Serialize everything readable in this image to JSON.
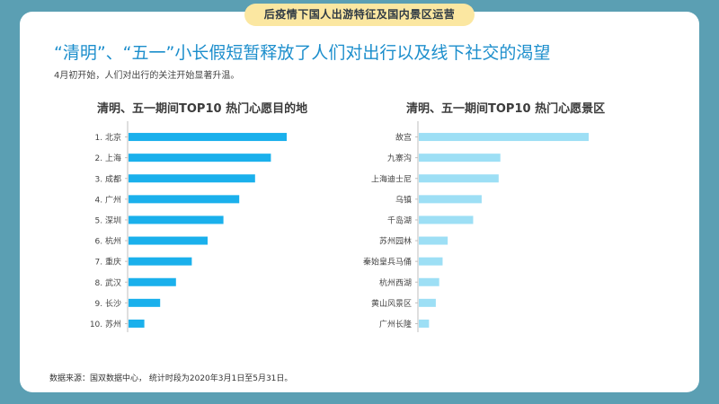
{
  "banner": "后疫情下国人出游特征及国内景区运营",
  "headline": "“清明”、“五一”小长假短暂释放了人们对出行以及线下社交的渴望",
  "subline": "4月初开始，人们对出行的关注开始显著升温。",
  "footer": "数据来源：国双数据中心， 统计时段为2020年3月1日至5月31日。",
  "colors": {
    "left_bar": "#1ab0ec",
    "right_bar": "#9ddff5",
    "background": "#5b9fb3"
  },
  "chart_data": [
    {
      "type": "bar",
      "orientation": "horizontal",
      "title": "清明、五一期间TOP10 热门心愿目的地",
      "categories": [
        "1. 北京",
        "2. 上海",
        "3. 成都",
        "4. 广州",
        "5. 深圳",
        "6. 杭州",
        "7. 重庆",
        "8. 武汉",
        "9. 长沙",
        "10. 苏州"
      ],
      "values": [
        100,
        90,
        80,
        70,
        60,
        50,
        40,
        30,
        20,
        10
      ],
      "xlim": [
        0,
        100
      ],
      "grid": false,
      "legend": "none"
    },
    {
      "type": "bar",
      "orientation": "horizontal",
      "title": "清明、五一期间TOP10 热门心愿景区",
      "categories": [
        "故宫",
        "九寨沟",
        "上海迪士尼",
        "乌镇",
        "千岛湖",
        "苏州园林",
        "秦始皇兵马俑",
        "杭州西湖",
        "黄山风景区",
        "广州长隆"
      ],
      "values": [
        100,
        48,
        47,
        37,
        32,
        17,
        14,
        12,
        10,
        6
      ],
      "xlim": [
        0,
        100
      ],
      "grid": false,
      "legend": "none"
    }
  ]
}
